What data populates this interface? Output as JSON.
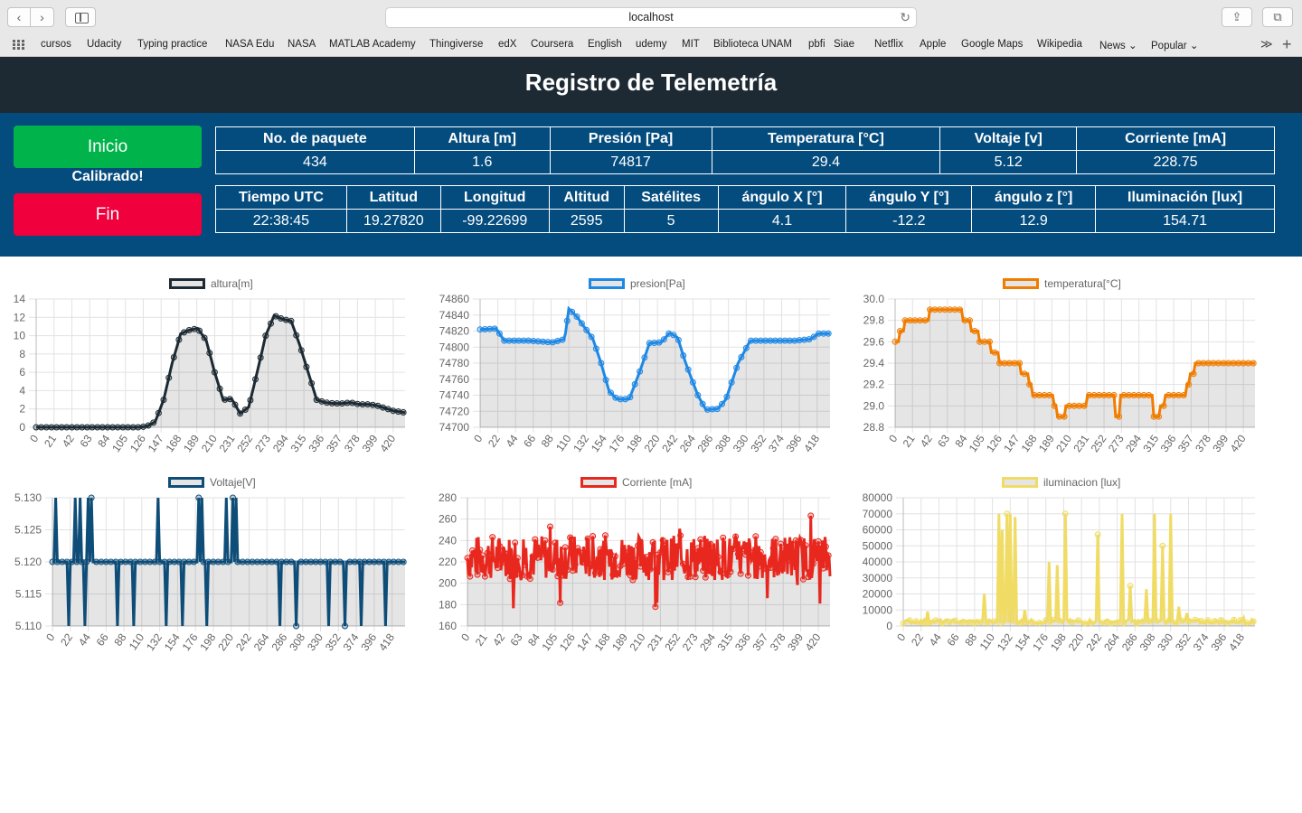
{
  "browser": {
    "url": "localhost",
    "bookmarks": [
      "cursos",
      "Udacity",
      "Typing practice",
      "NASA Edu",
      "NASA",
      "MATLAB Academy",
      "Thingiverse",
      "edX",
      "Coursera",
      "English",
      "udemy",
      "MIT",
      "Biblioteca UNAM",
      "pbfi",
      "Siae",
      "Netflix",
      "Apple",
      "Google Maps",
      "Wikipedia",
      "News ⌄",
      "Popular ⌄"
    ]
  },
  "header": {
    "title": "Registro de Telemetría"
  },
  "controls": {
    "start_label": "Inicio",
    "status": "Calibrado!",
    "stop_label": "Fin"
  },
  "table1": {
    "headers": [
      "No. de paquete",
      "Altura [m]",
      "Presión [Pa]",
      "Temperatura [°C]",
      "Voltaje [v]",
      "Corriente [mA]"
    ],
    "values": [
      "434",
      "1.6",
      "74817",
      "29.4",
      "5.12",
      "228.75"
    ]
  },
  "table2": {
    "headers": [
      "Tiempo UTC",
      "Latitud",
      "Longitud",
      "Altitud",
      "Satélites",
      "ángulo X [°]",
      "ángulo Y [°]",
      "ángulo z [°]",
      "Iluminación [lux]"
    ],
    "values": [
      "22:38:45",
      "19.27820",
      "-99.22699",
      "2595",
      "5",
      "4.1",
      "-12.2",
      "12.9",
      "154.71"
    ]
  },
  "chart_data": [
    {
      "type": "line",
      "series": [
        {
          "name": "altura[m]"
        }
      ],
      "color": "#1d2a33",
      "ylim": [
        0,
        14
      ],
      "yticks": [
        0,
        2,
        4,
        6,
        8,
        10,
        12,
        14
      ],
      "xticks": [
        0,
        21,
        42,
        63,
        84,
        105,
        126,
        147,
        168,
        189,
        210,
        231,
        252,
        273,
        294,
        315,
        336,
        357,
        378,
        399,
        420
      ],
      "xmax": 434,
      "points": [
        [
          0,
          0
        ],
        [
          40,
          0
        ],
        [
          80,
          0
        ],
        [
          120,
          0
        ],
        [
          130,
          0.1
        ],
        [
          140,
          0.6
        ],
        [
          150,
          3
        ],
        [
          160,
          7
        ],
        [
          170,
          10.2
        ],
        [
          180,
          10.6
        ],
        [
          190,
          10.8
        ],
        [
          200,
          9.5
        ],
        [
          210,
          6
        ],
        [
          220,
          3
        ],
        [
          230,
          3.1
        ],
        [
          240,
          1.5
        ],
        [
          250,
          2.2
        ],
        [
          260,
          6
        ],
        [
          270,
          10
        ],
        [
          280,
          12.2
        ],
        [
          290,
          11.8
        ],
        [
          300,
          11.6
        ],
        [
          310,
          9
        ],
        [
          320,
          6
        ],
        [
          330,
          3
        ],
        [
          340,
          2.7
        ],
        [
          350,
          2.6
        ],
        [
          360,
          2.6
        ],
        [
          370,
          2.7
        ],
        [
          380,
          2.5
        ],
        [
          390,
          2.5
        ],
        [
          400,
          2.4
        ],
        [
          410,
          2.1
        ],
        [
          420,
          1.8
        ],
        [
          434,
          1.6
        ]
      ]
    },
    {
      "type": "line",
      "series": [
        {
          "name": "presion[Pa]"
        }
      ],
      "color": "#1e88e5",
      "ylim": [
        74700,
        74860
      ],
      "yticks": [
        74700,
        74720,
        74740,
        74760,
        74780,
        74800,
        74820,
        74840,
        74860
      ],
      "xticks": [
        0,
        22,
        44,
        66,
        88,
        110,
        132,
        154,
        176,
        198,
        220,
        242,
        264,
        286,
        308,
        330,
        352,
        374,
        396,
        418
      ],
      "xmax": 434,
      "points": [
        [
          0,
          74822
        ],
        [
          20,
          74823
        ],
        [
          30,
          74808
        ],
        [
          60,
          74808
        ],
        [
          90,
          74806
        ],
        [
          105,
          74810
        ],
        [
          110,
          74848
        ],
        [
          120,
          74838
        ],
        [
          140,
          74810
        ],
        [
          150,
          74780
        ],
        [
          160,
          74745
        ],
        [
          170,
          74735
        ],
        [
          185,
          74735
        ],
        [
          200,
          74775
        ],
        [
          210,
          74805
        ],
        [
          225,
          74806
        ],
        [
          235,
          74818
        ],
        [
          245,
          74812
        ],
        [
          255,
          74780
        ],
        [
          270,
          74740
        ],
        [
          280,
          74722
        ],
        [
          295,
          74723
        ],
        [
          305,
          74735
        ],
        [
          320,
          74780
        ],
        [
          335,
          74808
        ],
        [
          360,
          74808
        ],
        [
          390,
          74808
        ],
        [
          410,
          74810
        ],
        [
          420,
          74817
        ]
      ]
    },
    {
      "type": "line",
      "series": [
        {
          "name": "temperatura[°C]"
        }
      ],
      "color": "#f07c00",
      "ylim": [
        28.8,
        30.0
      ],
      "yticks": [
        28.8,
        29.0,
        29.2,
        29.4,
        29.6,
        29.8,
        30.0
      ],
      "xticks": [
        0,
        21,
        42,
        63,
        84,
        105,
        126,
        147,
        168,
        189,
        210,
        231,
        252,
        273,
        294,
        315,
        336,
        357,
        378,
        399,
        420
      ],
      "xmax": 434,
      "points": [
        [
          0,
          29.6
        ],
        [
          5,
          29.7
        ],
        [
          10,
          29.8
        ],
        [
          30,
          29.8
        ],
        [
          40,
          29.9
        ],
        [
          70,
          29.9
        ],
        [
          80,
          29.8
        ],
        [
          90,
          29.7
        ],
        [
          100,
          29.6
        ],
        [
          110,
          29.6
        ],
        [
          115,
          29.5
        ],
        [
          125,
          29.4
        ],
        [
          145,
          29.4
        ],
        [
          150,
          29.3
        ],
        [
          160,
          29.2
        ],
        [
          165,
          29.1
        ],
        [
          185,
          29.1
        ],
        [
          190,
          29.0
        ],
        [
          195,
          28.9
        ],
        [
          205,
          29.0
        ],
        [
          225,
          29.0
        ],
        [
          230,
          29.1
        ],
        [
          260,
          29.1
        ],
        [
          265,
          28.9
        ],
        [
          270,
          29.1
        ],
        [
          305,
          29.1
        ],
        [
          310,
          28.9
        ],
        [
          318,
          29.0
        ],
        [
          325,
          29.1
        ],
        [
          345,
          29.1
        ],
        [
          350,
          29.2
        ],
        [
          355,
          29.3
        ],
        [
          360,
          29.4
        ],
        [
          420,
          29.4
        ]
      ]
    },
    {
      "type": "line",
      "series": [
        {
          "name": "Voltaje[V]"
        }
      ],
      "color": "#0e4d78",
      "ylim": [
        5.11,
        5.13
      ],
      "yticks": [
        5.11,
        5.115,
        5.12,
        5.125,
        5.13
      ],
      "xticks": [
        0,
        22,
        44,
        66,
        88,
        110,
        132,
        154,
        176,
        198,
        220,
        242,
        264,
        286,
        308,
        330,
        352,
        374,
        396,
        418
      ],
      "xmax": 434,
      "base": 5.12,
      "spikes_up": [
        4,
        28,
        34,
        44,
        48,
        130,
        140,
        180,
        184,
        214,
        222,
        226
      ],
      "spikes_down": [
        20,
        40,
        80,
        100,
        140,
        155,
        160,
        165,
        190,
        225,
        235,
        255,
        265,
        280,
        300,
        325,
        340,
        360,
        380,
        385,
        395,
        410
      ]
    },
    {
      "type": "line",
      "series": [
        {
          "name": "Corriente [mA]"
        }
      ],
      "color": "#e8281e",
      "ylim": [
        160,
        280
      ],
      "yticks": [
        160,
        180,
        200,
        220,
        240,
        260,
        280
      ],
      "xticks": [
        0,
        21,
        42,
        63,
        84,
        105,
        126,
        147,
        168,
        189,
        210,
        231,
        252,
        273,
        294,
        315,
        336,
        357,
        378,
        399,
        420
      ],
      "xmax": 434,
      "mean": 224
    },
    {
      "type": "line",
      "series": [
        {
          "name": "iluminacion [lux]"
        }
      ],
      "color": "#f0dc64",
      "ylim": [
        0,
        80000
      ],
      "yticks": [
        0,
        10000,
        20000,
        30000,
        40000,
        50000,
        60000,
        70000,
        80000
      ],
      "xticks": [
        0,
        22,
        44,
        66,
        88,
        110,
        132,
        154,
        176,
        198,
        220,
        242,
        264,
        286,
        308,
        330,
        352,
        374,
        396,
        418
      ],
      "xmax": 434,
      "spikes": [
        [
          30,
          9000
        ],
        [
          95,
          36000
        ],
        [
          100,
          20000
        ],
        [
          115,
          30000
        ],
        [
          118,
          70000
        ],
        [
          122,
          60000
        ],
        [
          128,
          70000
        ],
        [
          132,
          70000
        ],
        [
          138,
          68000
        ],
        [
          150,
          10000
        ],
        [
          180,
          40000
        ],
        [
          185,
          34000
        ],
        [
          190,
          38000
        ],
        [
          200,
          70000
        ],
        [
          240,
          57000
        ],
        [
          270,
          70000
        ],
        [
          280,
          25000
        ],
        [
          300,
          23000
        ],
        [
          310,
          70000
        ],
        [
          315,
          66000
        ],
        [
          320,
          50000
        ],
        [
          325,
          45000
        ],
        [
          330,
          70000
        ],
        [
          340,
          12000
        ],
        [
          350,
          8000
        ],
        [
          420,
          5000
        ]
      ]
    }
  ]
}
